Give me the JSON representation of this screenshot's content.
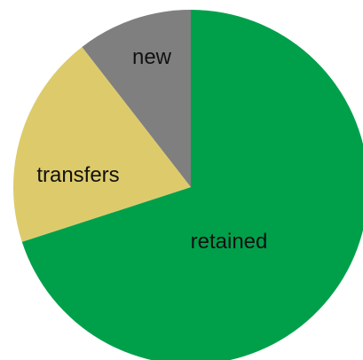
{
  "chart_data": {
    "type": "pie",
    "slices": [
      {
        "label": "retained",
        "value": 70,
        "color": "#00A04B"
      },
      {
        "label": "transfers",
        "value": 19.5,
        "color": "#DDCB6B"
      },
      {
        "label": "new",
        "value": 10.5,
        "color": "#7F7F7F"
      }
    ],
    "start": "12 o'clock",
    "direction": "clockwise"
  }
}
